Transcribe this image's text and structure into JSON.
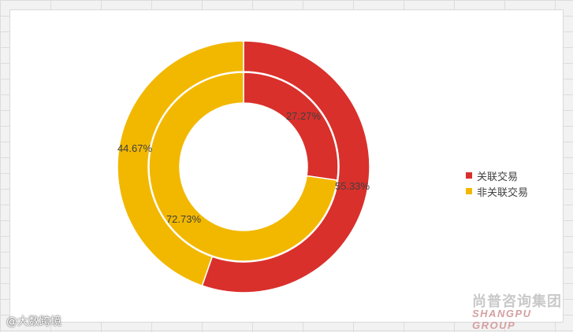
{
  "chart_data": {
    "type": "pie",
    "variant": "double-donut",
    "categories": [
      "关联交易",
      "非关联交易"
    ],
    "colors": [
      "#d9302c",
      "#f2b800"
    ],
    "series": [
      {
        "ring": "outer",
        "values": [
          55.33,
          44.67
        ],
        "labels": [
          "55.33%",
          "44.67%"
        ]
      },
      {
        "ring": "inner",
        "values": [
          27.27,
          72.73
        ],
        "labels": [
          "27.27%",
          "72.73%"
        ]
      }
    ],
    "legend_position": "right"
  },
  "legend": {
    "items": [
      {
        "label": "关联交易",
        "color": "#d9302c"
      },
      {
        "label": "非关联交易",
        "color": "#f2b800"
      }
    ]
  },
  "watermarks": {
    "brand_cn": "尚普咨询集团",
    "brand_en": "SHANGPU GROUP",
    "source_tag": "@大数跨境"
  }
}
